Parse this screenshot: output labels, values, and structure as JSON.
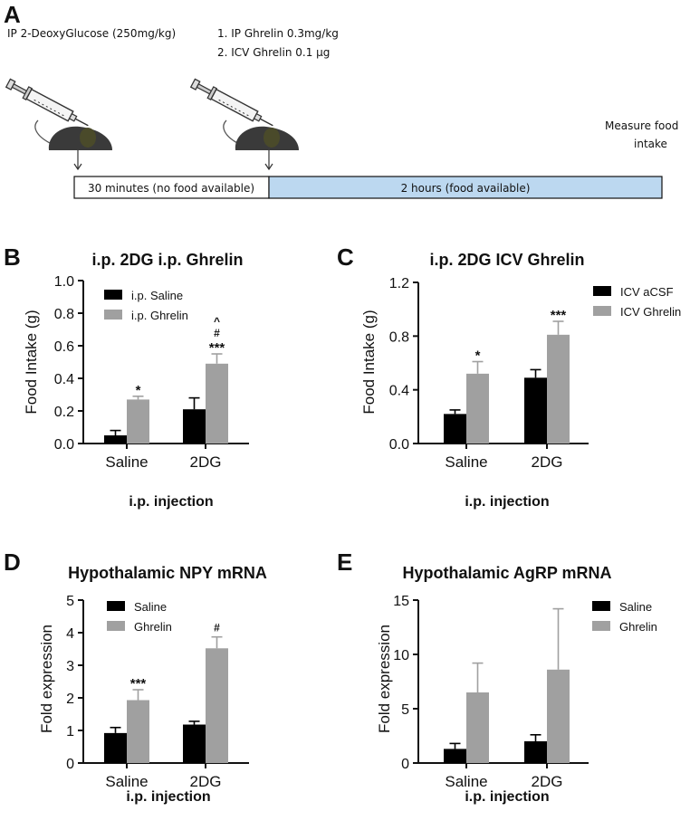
{
  "panel_a": {
    "label": "A",
    "step1": "IP 2-DeoxyGlucose (250mg/kg)",
    "step2_line1": "1. IP Ghrelin  0.3mg/kg",
    "step2_line2": "2. ICV Ghrelin 0.1 μg",
    "measure_line1": "Measure food",
    "measure_line2": "intake",
    "timeline_left": "30 minutes (no food available)",
    "timeline_right": "2 hours (food available)",
    "colors": {
      "timeline_right": "#bcd8f0",
      "mouse": "#3a3a3a",
      "ear": "#4a4a2a"
    }
  },
  "colors": {
    "black_bar": "#000000",
    "grey_bar": "#a0a0a0"
  },
  "chart_data": [
    {
      "panel": "B",
      "type": "bar",
      "title": "i.p. 2DG i.p. Ghrelin",
      "ylabel": "Food  Intake (g)",
      "xlabel": "i.p. injection",
      "ylim": [
        0,
        1.0
      ],
      "yticks": [
        "0.0",
        "0.2",
        "0.4",
        "0.6",
        "0.8",
        "1.0"
      ],
      "categories": [
        "Saline",
        "2DG"
      ],
      "series": [
        {
          "name": "i.p. Saline",
          "color": "black",
          "values": [
            0.05,
            0.21
          ],
          "errors": [
            0.03,
            0.07
          ]
        },
        {
          "name": "i.p. Ghrelin",
          "color": "grey",
          "values": [
            0.27,
            0.49
          ],
          "errors": [
            0.02,
            0.06
          ]
        }
      ],
      "annotations": [
        {
          "series": 1,
          "category": 0,
          "labels": [
            "*"
          ]
        },
        {
          "series": 1,
          "category": 1,
          "labels": [
            "***",
            "#",
            "^"
          ]
        }
      ]
    },
    {
      "panel": "C",
      "type": "bar",
      "title": "i.p. 2DG ICV Ghrelin",
      "ylabel": "Food Intake (g)",
      "xlabel": "i.p. injection",
      "ylim": [
        0,
        1.2
      ],
      "yticks": [
        "0.0",
        "0.4",
        "0.8",
        "1.2"
      ],
      "categories": [
        "Saline",
        "2DG"
      ],
      "series": [
        {
          "name": "ICV aCSF",
          "color": "black",
          "values": [
            0.22,
            0.49
          ],
          "errors": [
            0.03,
            0.06
          ]
        },
        {
          "name": "ICV Ghrelin",
          "color": "grey",
          "values": [
            0.52,
            0.81
          ],
          "errors": [
            0.09,
            0.1
          ]
        }
      ],
      "annotations": [
        {
          "series": 1,
          "category": 0,
          "labels": [
            "*"
          ]
        },
        {
          "series": 1,
          "category": 1,
          "labels": [
            "***"
          ]
        }
      ]
    },
    {
      "panel": "D",
      "type": "bar",
      "title": "Hypothalamic NPY mRNA",
      "ylabel": "Fold expression",
      "xlabel": "i.p. injection",
      "ylim": [
        0,
        5
      ],
      "yticks": [
        "0",
        "1",
        "2",
        "3",
        "4",
        "5"
      ],
      "categories": [
        "Saline",
        "2DG"
      ],
      "series": [
        {
          "name": "Saline",
          "color": "black",
          "values": [
            0.92,
            1.18
          ],
          "errors": [
            0.17,
            0.1
          ]
        },
        {
          "name": "Ghrelin",
          "color": "grey",
          "values": [
            1.93,
            3.52
          ],
          "errors": [
            0.32,
            0.35
          ]
        }
      ],
      "annotations": [
        {
          "series": 1,
          "category": 0,
          "labels": [
            "***"
          ]
        },
        {
          "series": 1,
          "category": 1,
          "labels": [
            "#"
          ]
        }
      ]
    },
    {
      "panel": "E",
      "type": "bar",
      "title": "Hypothalamic AgRP mRNA",
      "ylabel": "Fold expression",
      "xlabel": "i.p. injection",
      "ylim": [
        0,
        15
      ],
      "yticks": [
        "0",
        "5",
        "10",
        "15"
      ],
      "categories": [
        "Saline",
        "2DG"
      ],
      "series": [
        {
          "name": "Saline",
          "color": "black",
          "values": [
            1.3,
            2.0
          ],
          "errors": [
            0.5,
            0.6
          ]
        },
        {
          "name": "Ghrelin",
          "color": "grey",
          "values": [
            6.5,
            8.6
          ],
          "errors": [
            2.7,
            5.6
          ]
        }
      ],
      "annotations": []
    }
  ]
}
